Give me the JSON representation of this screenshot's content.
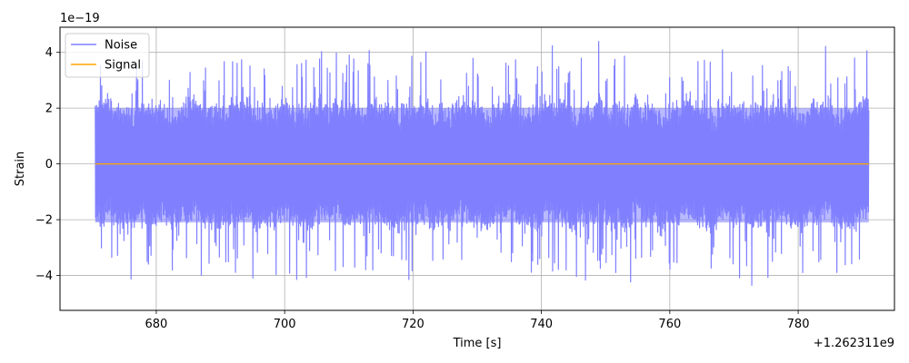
{
  "chart_data": {
    "type": "line",
    "title": "",
    "xlabel": "Time [s]",
    "ylabel": "Strain",
    "x_offset_text": "+1.262311e9",
    "y_scale_text": "1e−19",
    "xlim": [
      665.0,
      795.0
    ],
    "ylim": [
      -5.25,
      4.9
    ],
    "x_ticks": [
      680,
      700,
      720,
      740,
      760,
      780
    ],
    "y_ticks": [
      -4,
      -2,
      0,
      2,
      4
    ],
    "grid": true,
    "legend": "top-left",
    "series": [
      {
        "name": "Noise",
        "color": "#8080ff",
        "x_range": [
          670.5,
          791.0
        ],
        "typical_envelope": [
          -2.1,
          2.0
        ],
        "peak_max": 4.45,
        "peak_min": -4.75
      },
      {
        "name": "Signal",
        "color": "#ffa500",
        "x": [
          670.5,
          791.0
        ],
        "values": [
          0,
          0
        ]
      }
    ]
  }
}
